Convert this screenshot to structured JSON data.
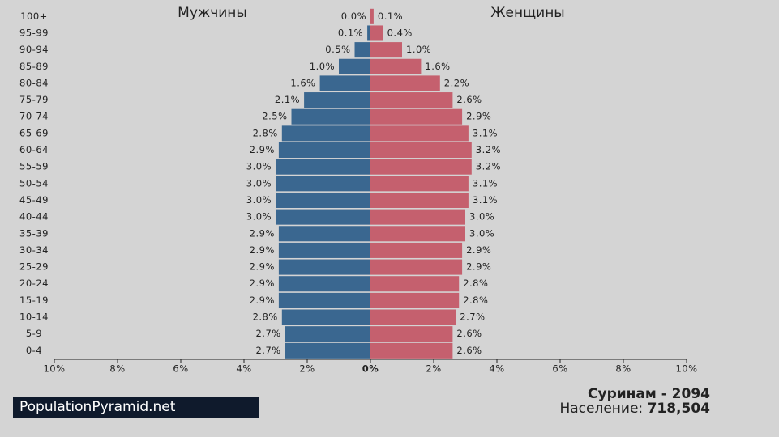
{
  "chart_data": {
    "type": "pyramid",
    "categories": [
      "100+",
      "95-99",
      "90-94",
      "85-89",
      "80-84",
      "75-79",
      "70-74",
      "65-69",
      "60-64",
      "55-59",
      "50-54",
      "45-49",
      "40-44",
      "35-39",
      "30-34",
      "25-29",
      "20-24",
      "15-19",
      "10-14",
      "5-9",
      "0-4"
    ],
    "series": [
      {
        "name": "Мужчины",
        "color": "#3a6790",
        "values": [
          0.0,
          0.1,
          0.5,
          1.0,
          1.6,
          2.1,
          2.5,
          2.8,
          2.9,
          3.0,
          3.0,
          3.0,
          3.0,
          2.9,
          2.9,
          2.9,
          2.9,
          2.9,
          2.8,
          2.7,
          2.7
        ],
        "value_labels": [
          "0.0%",
          "0.1%",
          "0.5%",
          "1.0%",
          "1.6%",
          "2.1%",
          "2.5%",
          "2.8%",
          "2.9%",
          "3.0%",
          "3.0%",
          "3.0%",
          "3.0%",
          "2.9%",
          "2.9%",
          "2.9%",
          "2.9%",
          "2.9%",
          "2.8%",
          "2.7%",
          "2.7%"
        ]
      },
      {
        "name": "Женщины",
        "color": "#c5606e",
        "values": [
          0.1,
          0.4,
          1.0,
          1.6,
          2.2,
          2.6,
          2.9,
          3.1,
          3.2,
          3.2,
          3.1,
          3.1,
          3.0,
          3.0,
          2.9,
          2.9,
          2.8,
          2.8,
          2.7,
          2.6,
          2.6
        ],
        "value_labels": [
          "0.1%",
          "0.4%",
          "1.0%",
          "1.6%",
          "2.2%",
          "2.6%",
          "2.9%",
          "3.1%",
          "3.2%",
          "3.2%",
          "3.1%",
          "3.1%",
          "3.0%",
          "3.0%",
          "2.9%",
          "2.9%",
          "2.8%",
          "2.8%",
          "2.7%",
          "2.6%",
          "2.6%"
        ]
      }
    ],
    "xlim": [
      0,
      10
    ],
    "xticks": [
      {
        "value": 0,
        "label": "0%"
      },
      {
        "value": 2,
        "label": "2%"
      },
      {
        "value": 4,
        "label": "4%"
      },
      {
        "value": 6,
        "label": "6%"
      },
      {
        "value": 8,
        "label": "8%"
      },
      {
        "value": 10,
        "label": "10%"
      }
    ],
    "country_year": "Суринам - 2094",
    "population_label": "Население:",
    "population": "718,504",
    "source": "PopulationPyramid.net"
  }
}
